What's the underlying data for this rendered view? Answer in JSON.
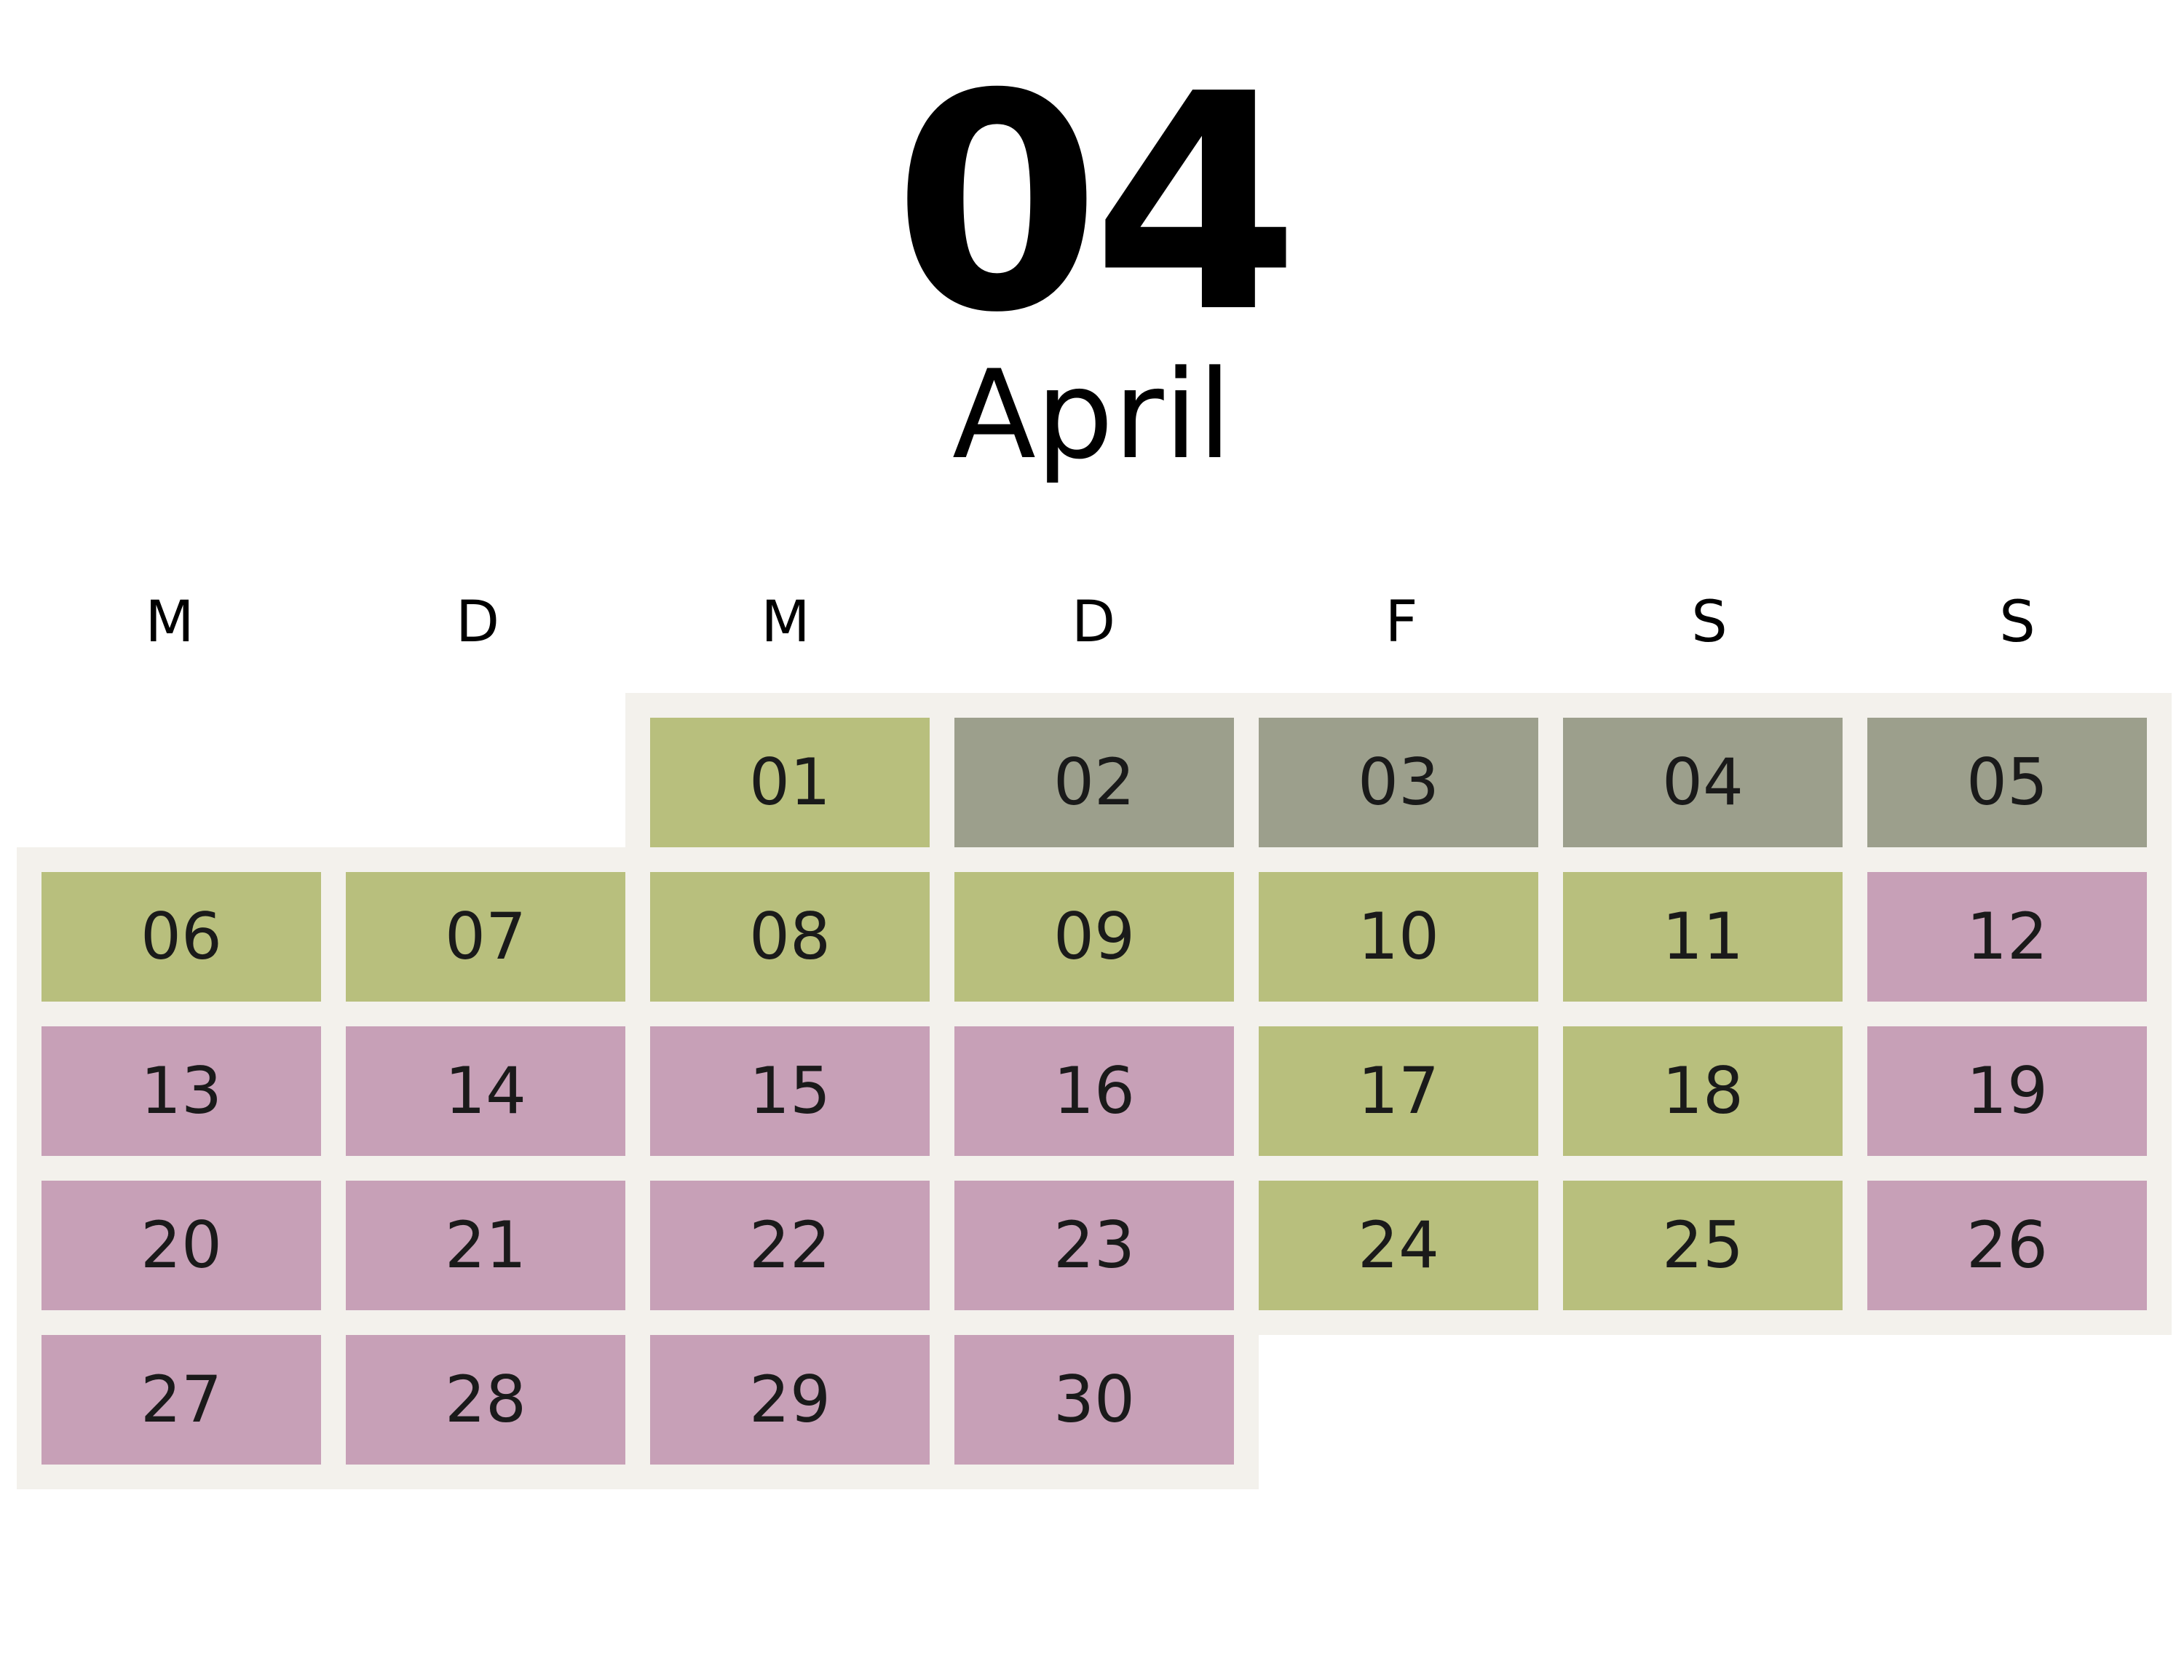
{
  "header": {
    "month_number": "04",
    "month_name": "April"
  },
  "weekdays": [
    "M",
    "D",
    "M",
    "D",
    "F",
    "S",
    "S"
  ],
  "colors": {
    "green": "#b8bf7d",
    "gray": "#9c9f8c",
    "pink": "#c7a0b7",
    "backing": "#f3f1ec"
  },
  "weeks": [
    [
      null,
      null,
      {
        "day": "01",
        "color": "green"
      },
      {
        "day": "02",
        "color": "gray"
      },
      {
        "day": "03",
        "color": "gray"
      },
      {
        "day": "04",
        "color": "gray"
      },
      {
        "day": "05",
        "color": "gray"
      }
    ],
    [
      {
        "day": "06",
        "color": "green"
      },
      {
        "day": "07",
        "color": "green"
      },
      {
        "day": "08",
        "color": "green"
      },
      {
        "day": "09",
        "color": "green"
      },
      {
        "day": "10",
        "color": "green"
      },
      {
        "day": "11",
        "color": "green"
      },
      {
        "day": "12",
        "color": "pink"
      }
    ],
    [
      {
        "day": "13",
        "color": "pink"
      },
      {
        "day": "14",
        "color": "pink"
      },
      {
        "day": "15",
        "color": "pink"
      },
      {
        "day": "16",
        "color": "pink"
      },
      {
        "day": "17",
        "color": "green"
      },
      {
        "day": "18",
        "color": "green"
      },
      {
        "day": "19",
        "color": "pink"
      }
    ],
    [
      {
        "day": "20",
        "color": "pink"
      },
      {
        "day": "21",
        "color": "pink"
      },
      {
        "day": "22",
        "color": "pink"
      },
      {
        "day": "23",
        "color": "pink"
      },
      {
        "day": "24",
        "color": "green"
      },
      {
        "day": "25",
        "color": "green"
      },
      {
        "day": "26",
        "color": "pink"
      }
    ],
    [
      {
        "day": "27",
        "color": "pink"
      },
      {
        "day": "28",
        "color": "pink"
      },
      {
        "day": "29",
        "color": "pink"
      },
      {
        "day": "30",
        "color": "pink"
      },
      null,
      null,
      null
    ]
  ]
}
